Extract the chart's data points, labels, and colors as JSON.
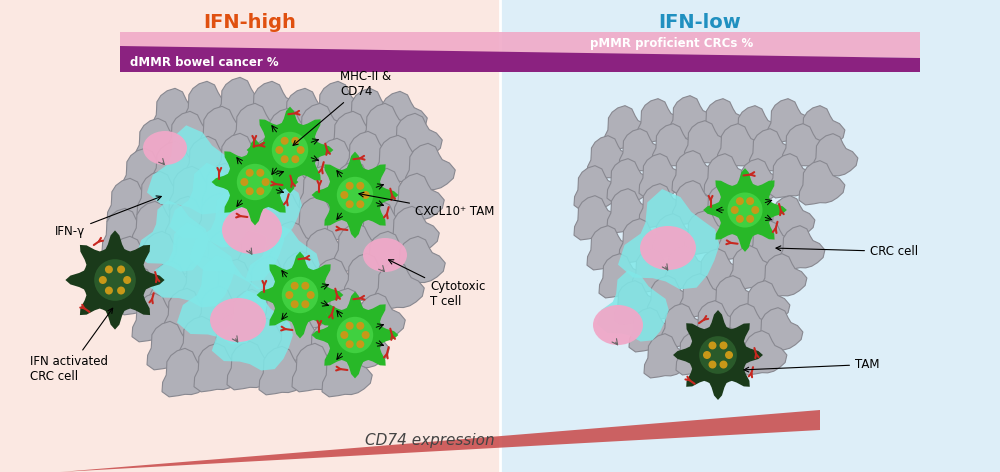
{
  "left_bg": "#fbe8e2",
  "right_bg": "#ddeef8",
  "left_title": "IFN-high",
  "right_title": "IFN-low",
  "left_title_color": "#e05010",
  "right_title_color": "#2090c0",
  "purple_bar_color": "#8b2280",
  "pink_bar_color": "#f0aac8",
  "purple_label": "dMMR bowel cancer %",
  "pink_label": "pMMR proficient CRCs %",
  "cd74_label": "CD74 expression",
  "cd74_triangle_color": "#c84848",
  "cell_gray": "#b0b0b8",
  "cell_gray_edge": "#888890",
  "cell_cyan": "#80e8e8",
  "cell_pink": "#f0a8c8",
  "cell_green": "#28b828",
  "cell_green_inner": "#40d040",
  "cell_green_dark": "#1a3a1a",
  "cell_green_dark_inner": "#2a5a2a",
  "cell_red_fork": "#c82820",
  "cell_gold_dot": "#c89818"
}
